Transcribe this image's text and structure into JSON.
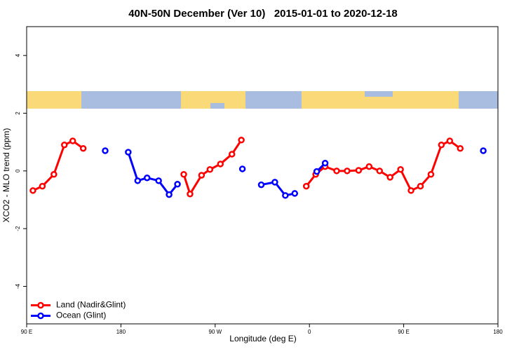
{
  "chart_data": {
    "type": "line",
    "title": "40N-50N December (Ver 10)   2015-01-01 to 2020-12-18",
    "xlabel": "Longitude (deg E)",
    "ylabel": "XCO2 - MLO trend (ppm)",
    "xlim": [
      90,
      540
    ],
    "ylim": [
      -5.3,
      5
    ],
    "xticks": [
      {
        "value": 90,
        "label": "90 E"
      },
      {
        "value": 180,
        "label": "180"
      },
      {
        "value": 270,
        "label": "90 W"
      },
      {
        "value": 360,
        "label": "0"
      },
      {
        "value": 450,
        "label": "90 E"
      },
      {
        "value": 540,
        "label": "180"
      }
    ],
    "yticks": [
      -4,
      -2,
      0,
      2,
      4
    ],
    "legend": "bottomleft",
    "series": [
      {
        "name": "Land (Nadir&Glint)",
        "color": "#ff0000",
        "x": [
          96,
          105,
          116,
          126,
          134,
          144,
          null,
          240,
          246,
          257,
          265,
          275,
          286,
          295,
          null,
          357,
          366,
          375,
          386,
          396,
          407,
          417,
          427,
          437,
          447,
          457,
          466,
          476,
          486,
          494,
          504
        ],
        "values": [
          -0.68,
          -0.53,
          -0.12,
          0.9,
          1.04,
          0.78,
          null,
          -0.12,
          -0.8,
          -0.15,
          0.05,
          0.24,
          0.58,
          1.07,
          null,
          -0.53,
          -0.12,
          0.15,
          0,
          0,
          0.02,
          0.15,
          0,
          -0.22,
          0.05,
          -0.68,
          -0.53,
          -0.12,
          0.9,
          1.04,
          0.78
        ]
      },
      {
        "name": "Ocean (Glint)",
        "color": "#0000ff",
        "x": [
          165,
          null,
          187,
          196,
          205,
          216,
          226,
          234,
          null,
          296,
          null,
          314,
          327,
          337,
          346,
          null,
          367,
          375,
          null,
          526
        ],
        "values": [
          0.7,
          null,
          0.65,
          -0.34,
          -0.24,
          -0.34,
          -0.82,
          -0.46,
          null,
          0.07,
          null,
          -0.48,
          -0.39,
          -0.85,
          -0.78,
          null,
          -0.02,
          0.27,
          null,
          0.7
        ]
      }
    ]
  }
}
